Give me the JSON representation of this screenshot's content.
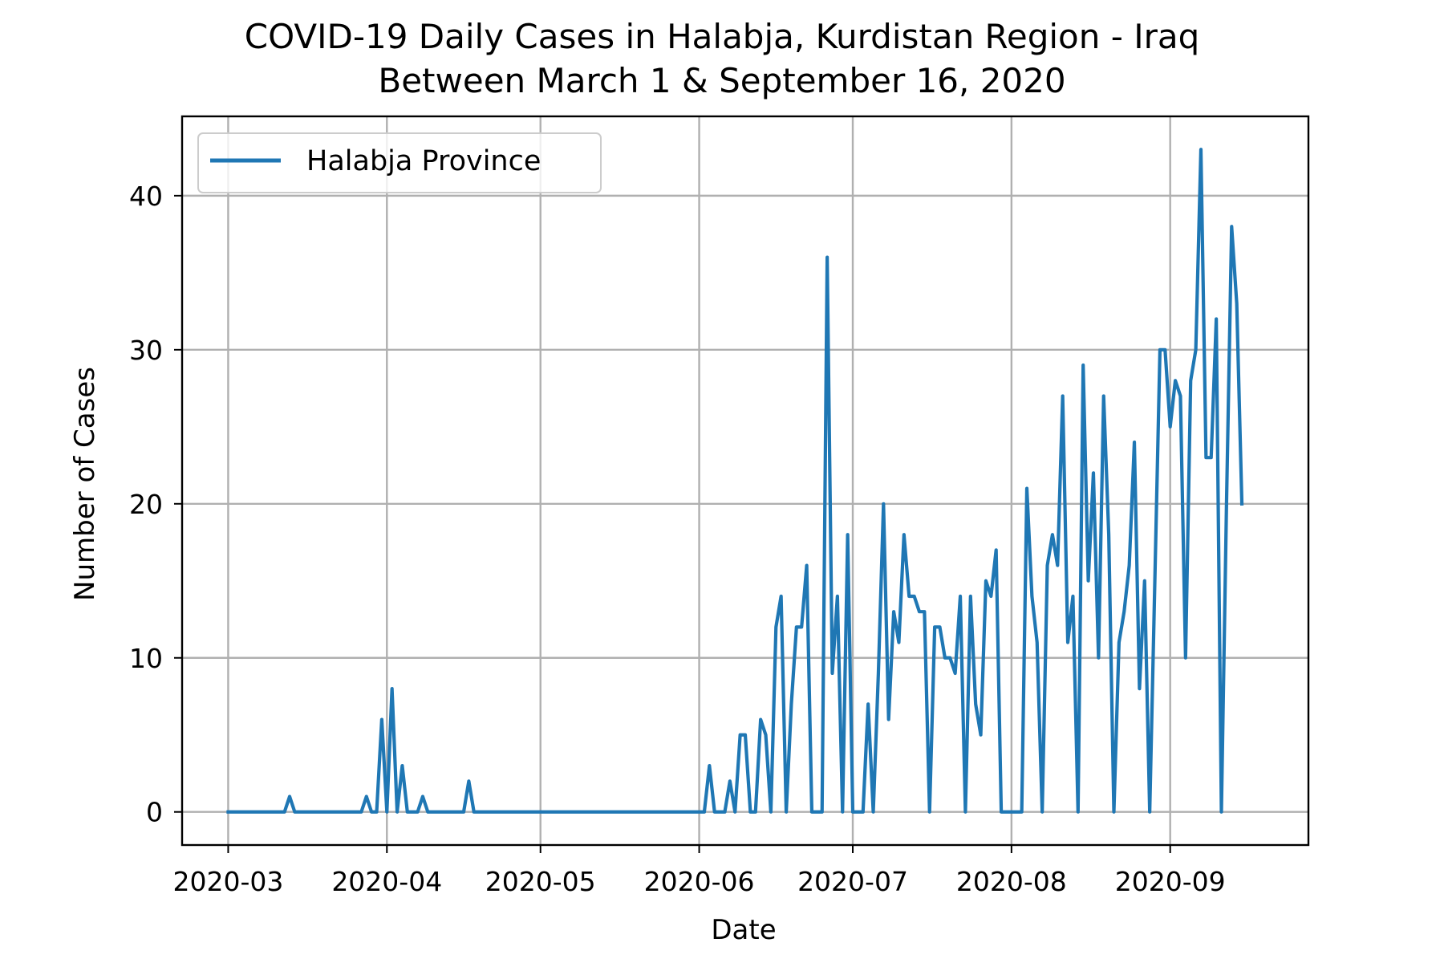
{
  "chart_data": {
    "type": "line",
    "title": "COVID-19 Daily Cases in Halabja, Kurdistan Region - Iraq",
    "subtitle": "Between March 1 & September 16, 2020",
    "xlabel": "Date",
    "ylabel": "Number of Cases",
    "xlim": [
      "2020-02-21",
      "2020-09-28"
    ],
    "ylim": [
      -2.15,
      45.15
    ],
    "x_ticks": [
      "2020-03-01",
      "2020-04-01",
      "2020-05-01",
      "2020-06-01",
      "2020-07-01",
      "2020-08-01",
      "2020-09-01"
    ],
    "x_tick_labels": [
      "2020-03",
      "2020-04",
      "2020-05",
      "2020-06",
      "2020-07",
      "2020-08",
      "2020-09"
    ],
    "y_ticks": [
      0,
      10,
      20,
      30,
      40
    ],
    "grid": true,
    "legend": {
      "position": "upper-left"
    },
    "series": [
      {
        "name": "Halabja Province",
        "color": "#1f77b4",
        "points": [
          [
            "2020-03-01",
            0
          ],
          [
            "2020-03-12",
            0
          ],
          [
            "2020-03-13",
            1
          ],
          [
            "2020-03-14",
            0
          ],
          [
            "2020-03-27",
            0
          ],
          [
            "2020-03-28",
            1
          ],
          [
            "2020-03-29",
            0
          ],
          [
            "2020-03-30",
            0
          ],
          [
            "2020-03-31",
            6
          ],
          [
            "2020-04-01",
            0
          ],
          [
            "2020-04-02",
            8
          ],
          [
            "2020-04-03",
            0
          ],
          [
            "2020-04-04",
            3
          ],
          [
            "2020-04-05",
            0
          ],
          [
            "2020-04-06",
            0
          ],
          [
            "2020-04-07",
            0
          ],
          [
            "2020-04-08",
            1
          ],
          [
            "2020-04-09",
            0
          ],
          [
            "2020-04-16",
            0
          ],
          [
            "2020-04-17",
            2
          ],
          [
            "2020-04-18",
            0
          ],
          [
            "2020-06-02",
            0
          ],
          [
            "2020-06-03",
            3
          ],
          [
            "2020-06-04",
            0
          ],
          [
            "2020-06-06",
            0
          ],
          [
            "2020-06-07",
            2
          ],
          [
            "2020-06-08",
            0
          ],
          [
            "2020-06-09",
            5
          ],
          [
            "2020-06-10",
            5
          ],
          [
            "2020-06-11",
            0
          ],
          [
            "2020-06-12",
            0
          ],
          [
            "2020-06-13",
            6
          ],
          [
            "2020-06-14",
            5
          ],
          [
            "2020-06-15",
            0
          ],
          [
            "2020-06-16",
            12
          ],
          [
            "2020-06-17",
            14
          ],
          [
            "2020-06-18",
            0
          ],
          [
            "2020-06-19",
            7
          ],
          [
            "2020-06-20",
            12
          ],
          [
            "2020-06-21",
            12
          ],
          [
            "2020-06-22",
            16
          ],
          [
            "2020-06-23",
            0
          ],
          [
            "2020-06-24",
            0
          ],
          [
            "2020-06-25",
            0
          ],
          [
            "2020-06-26",
            36
          ],
          [
            "2020-06-27",
            9
          ],
          [
            "2020-06-28",
            14
          ],
          [
            "2020-06-29",
            0
          ],
          [
            "2020-06-30",
            18
          ],
          [
            "2020-07-01",
            0
          ],
          [
            "2020-07-02",
            0
          ],
          [
            "2020-07-03",
            0
          ],
          [
            "2020-07-04",
            7
          ],
          [
            "2020-07-05",
            0
          ],
          [
            "2020-07-06",
            9
          ],
          [
            "2020-07-07",
            20
          ],
          [
            "2020-07-08",
            6
          ],
          [
            "2020-07-09",
            13
          ],
          [
            "2020-07-10",
            11
          ],
          [
            "2020-07-11",
            18
          ],
          [
            "2020-07-12",
            14
          ],
          [
            "2020-07-13",
            14
          ],
          [
            "2020-07-14",
            13
          ],
          [
            "2020-07-15",
            13
          ],
          [
            "2020-07-16",
            0
          ],
          [
            "2020-07-17",
            12
          ],
          [
            "2020-07-18",
            12
          ],
          [
            "2020-07-19",
            10
          ],
          [
            "2020-07-20",
            10
          ],
          [
            "2020-07-21",
            9
          ],
          [
            "2020-07-22",
            14
          ],
          [
            "2020-07-23",
            0
          ],
          [
            "2020-07-24",
            14
          ],
          [
            "2020-07-25",
            7
          ],
          [
            "2020-07-26",
            5
          ],
          [
            "2020-07-27",
            15
          ],
          [
            "2020-07-28",
            14
          ],
          [
            "2020-07-29",
            17
          ],
          [
            "2020-07-30",
            0
          ],
          [
            "2020-07-31",
            0
          ],
          [
            "2020-08-01",
            0
          ],
          [
            "2020-08-02",
            0
          ],
          [
            "2020-08-03",
            0
          ],
          [
            "2020-08-04",
            21
          ],
          [
            "2020-08-05",
            14
          ],
          [
            "2020-08-06",
            11
          ],
          [
            "2020-08-07",
            0
          ],
          [
            "2020-08-08",
            16
          ],
          [
            "2020-08-09",
            18
          ],
          [
            "2020-08-10",
            16
          ],
          [
            "2020-08-11",
            27
          ],
          [
            "2020-08-12",
            11
          ],
          [
            "2020-08-13",
            14
          ],
          [
            "2020-08-14",
            0
          ],
          [
            "2020-08-15",
            29
          ],
          [
            "2020-08-16",
            15
          ],
          [
            "2020-08-17",
            22
          ],
          [
            "2020-08-18",
            10
          ],
          [
            "2020-08-19",
            27
          ],
          [
            "2020-08-20",
            18
          ],
          [
            "2020-08-21",
            0
          ],
          [
            "2020-08-22",
            11
          ],
          [
            "2020-08-23",
            13
          ],
          [
            "2020-08-24",
            16
          ],
          [
            "2020-08-25",
            24
          ],
          [
            "2020-08-26",
            8
          ],
          [
            "2020-08-27",
            15
          ],
          [
            "2020-08-28",
            0
          ],
          [
            "2020-08-29",
            15
          ],
          [
            "2020-08-30",
            30
          ],
          [
            "2020-08-31",
            30
          ],
          [
            "2020-09-01",
            25
          ],
          [
            "2020-09-02",
            28
          ],
          [
            "2020-09-03",
            27
          ],
          [
            "2020-09-04",
            10
          ],
          [
            "2020-09-05",
            28
          ],
          [
            "2020-09-06",
            30
          ],
          [
            "2020-09-07",
            43
          ],
          [
            "2020-09-08",
            23
          ],
          [
            "2020-09-09",
            23
          ],
          [
            "2020-09-10",
            32
          ],
          [
            "2020-09-11",
            0
          ],
          [
            "2020-09-12",
            20
          ],
          [
            "2020-09-13",
            38
          ],
          [
            "2020-09-14",
            33
          ],
          [
            "2020-09-15",
            20
          ]
        ]
      }
    ]
  }
}
